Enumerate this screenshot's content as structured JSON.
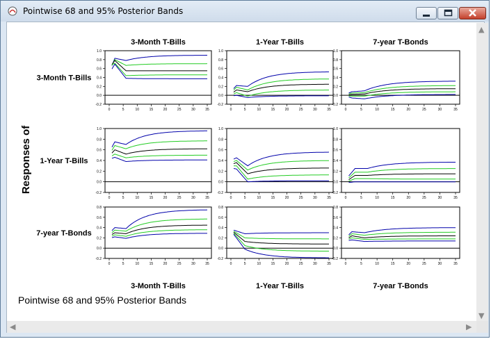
{
  "window": {
    "title": "Pointwise 68 and 95% Posterior Bands",
    "buttons": {
      "minimize": "minimize",
      "maximize": "maximize",
      "close": "close"
    }
  },
  "caption": "Pointwise 68 and 95% Posterior Bands",
  "scrollbars": {
    "up": "▲",
    "down": "▼",
    "left": "◀",
    "right": "▶"
  },
  "chart_data": {
    "type": "line",
    "ylabel": "Responses of",
    "column_titles": [
      "3-Month T-Bills",
      "1-Year T-Bills",
      "7-year T-Bonds"
    ],
    "row_labels": [
      "3-Month T-Bills",
      "1-Year T-Bills",
      "7-year T-Bonds"
    ],
    "bottom_labels": [
      "3-Month T-Bills",
      "1-Year T-Bills",
      "7-year T-Bonds"
    ],
    "x_ticks": [
      0,
      5,
      10,
      15,
      20,
      25,
      30,
      35
    ],
    "rows": [
      {
        "ylim": [
          -0.2,
          1.0
        ],
        "y_ticks": [
          "1.0",
          "0.8",
          "0.6",
          "0.4",
          "0.2",
          "0.0",
          "-0.2"
        ],
        "y_values": [
          1.0,
          0.8,
          0.6,
          0.4,
          0.2,
          0.0,
          -0.2
        ]
      },
      {
        "ylim": [
          -0.2,
          1.0
        ],
        "y_ticks": [
          "1.0",
          "0.8",
          "0.6",
          "0.4",
          "0.2",
          "0.0",
          "-0.2"
        ],
        "y_values": [
          1.0,
          0.8,
          0.6,
          0.4,
          0.2,
          0.0,
          -0.2
        ]
      },
      {
        "ylim": [
          -0.2,
          0.8
        ],
        "y_ticks": [
          "0.8",
          "0.6",
          "0.4",
          "0.2",
          "0.0",
          "-0.2"
        ],
        "y_values": [
          0.8,
          0.6,
          0.4,
          0.2,
          0.0,
          -0.2
        ]
      }
    ],
    "bands": [
      "upper95",
      "upper68",
      "median",
      "lower68",
      "lower95"
    ],
    "colors": {
      "upper95": "#0000aa",
      "upper68": "#22cc22",
      "median": "#000000",
      "lower68": "#22cc22",
      "lower95": "#0000aa"
    },
    "panels": [
      [
        {
          "start": [
            0.5,
            0.55,
            0.6,
            0.65,
            0.48
          ],
          "peak_t": 2,
          "peak": [
            0.83,
            0.8,
            0.78,
            0.72,
            0.7
          ],
          "final": [
            0.9,
            0.71,
            0.55,
            0.46,
            0.37
          ],
          "dip": [
            0.78,
            0.67,
            0.55,
            0.44,
            0.38
          ]
        },
        {
          "start": [
            0.08,
            0.05,
            0.02,
            0.0,
            -0.02
          ],
          "peak_t": 2,
          "peak": [
            0.22,
            0.18,
            0.12,
            0.06,
            0.0
          ],
          "final": [
            0.53,
            0.37,
            0.25,
            0.12,
            -0.01
          ],
          "dip": [
            0.2,
            0.12,
            0.08,
            -0.02,
            -0.05
          ]
        },
        {
          "start": [
            0.02,
            0.01,
            0.0,
            -0.01,
            -0.02
          ],
          "peak_t": 2,
          "peak": [
            0.08,
            0.05,
            0.02,
            -0.02,
            -0.06
          ],
          "final": [
            0.32,
            0.22,
            0.15,
            0.08,
            0.02
          ],
          "dip": [
            0.1,
            0.06,
            0.03,
            -0.02,
            -0.08
          ]
        }
      ],
      [
        {
          "start": [
            0.55,
            0.5,
            0.48,
            0.45,
            0.42
          ],
          "peak_t": 2,
          "peak": [
            0.75,
            0.68,
            0.6,
            0.52,
            0.46
          ],
          "final": [
            0.96,
            0.77,
            0.62,
            0.5,
            0.41
          ],
          "dip": [
            0.7,
            0.62,
            0.52,
            0.45,
            0.38
          ]
        },
        {
          "start": [
            0.4,
            0.36,
            0.32,
            0.3,
            0.26
          ],
          "peak_t": 2,
          "peak": [
            0.45,
            0.4,
            0.36,
            0.3,
            0.24
          ],
          "final": [
            0.56,
            0.4,
            0.26,
            0.13,
            0.02
          ],
          "dip": [
            0.3,
            0.22,
            0.15,
            0.05,
            0.0
          ]
        },
        {
          "start": [
            0.04,
            0.02,
            0.0,
            -0.01,
            -0.02
          ],
          "peak_t": 3,
          "peak": [
            0.25,
            0.18,
            0.12,
            0.06,
            0.0
          ],
          "final": [
            0.37,
            0.25,
            0.15,
            0.05,
            0.0
          ],
          "dip": [
            0.25,
            0.18,
            0.12,
            0.06,
            0.0
          ]
        }
      ],
      [
        {
          "start": [
            0.28,
            0.25,
            0.23,
            0.21,
            0.19
          ],
          "peak_t": 2,
          "peak": [
            0.4,
            0.35,
            0.3,
            0.26,
            0.22
          ],
          "final": [
            0.75,
            0.57,
            0.45,
            0.36,
            0.29
          ],
          "dip": [
            0.38,
            0.33,
            0.28,
            0.23,
            0.19
          ]
        },
        {
          "start": [
            0.32,
            0.3,
            0.28,
            0.26,
            0.24
          ],
          "peak_t": 1,
          "peak": [
            0.35,
            0.33,
            0.31,
            0.29,
            0.27
          ],
          "final": [
            0.3,
            0.18,
            0.08,
            -0.06,
            -0.19
          ],
          "dip": [
            0.28,
            0.2,
            0.13,
            0.05,
            -0.02
          ]
        },
        {
          "start": [
            0.2,
            0.18,
            0.16,
            0.15,
            0.14
          ],
          "peak_t": 2,
          "peak": [
            0.32,
            0.28,
            0.24,
            0.2,
            0.16
          ],
          "final": [
            0.4,
            0.31,
            0.24,
            0.18,
            0.14
          ],
          "dip": [
            0.3,
            0.25,
            0.2,
            0.17,
            0.13
          ]
        }
      ]
    ]
  }
}
